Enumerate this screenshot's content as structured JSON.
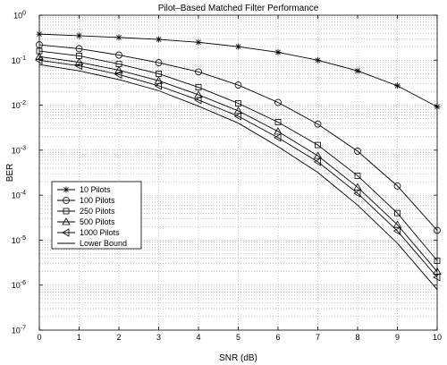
{
  "chart_data": {
    "type": "line",
    "title": "Pilot–Based Matched Filter Performance",
    "xlabel": "SNR (dB)",
    "ylabel": "BER",
    "xlim": [
      0,
      10
    ],
    "ylim": [
      1e-07,
      1
    ],
    "yscale": "log",
    "grid": true,
    "legend_position": "lower-left",
    "x_ticks": [
      "0",
      "1",
      "2",
      "3",
      "4",
      "5",
      "6",
      "7",
      "8",
      "9",
      "10"
    ],
    "y_ticks": [
      {
        "base": "10",
        "exp": "0"
      },
      {
        "base": "10",
        "exp": "-1"
      },
      {
        "base": "10",
        "exp": "-2"
      },
      {
        "base": "10",
        "exp": "-3"
      },
      {
        "base": "10",
        "exp": "-4"
      },
      {
        "base": "10",
        "exp": "-5"
      },
      {
        "base": "10",
        "exp": "-6"
      },
      {
        "base": "10",
        "exp": "-7"
      }
    ],
    "x": [
      0,
      1,
      2,
      3,
      4,
      5,
      6,
      7,
      8,
      9,
      10
    ],
    "series": [
      {
        "name": "10 Pilots",
        "marker": "asterisk",
        "values": [
          0.38,
          0.35,
          0.32,
          0.29,
          0.25,
          0.2,
          0.15,
          0.1,
          0.058,
          0.027,
          0.0092
        ]
      },
      {
        "name": "100 Pilots",
        "marker": "circle",
        "values": [
          0.22,
          0.18,
          0.13,
          0.088,
          0.055,
          0.028,
          0.0115,
          0.0038,
          0.00095,
          0.00016,
          1.65e-05
        ]
      },
      {
        "name": "250 Pilots",
        "marker": "square",
        "values": [
          0.16,
          0.125,
          0.082,
          0.05,
          0.025,
          0.011,
          0.0042,
          0.0013,
          0.00027,
          4e-05,
          3.5e-06
        ]
      },
      {
        "name": "500 Pilots",
        "marker": "triangle-up",
        "values": [
          0.12,
          0.09,
          0.06,
          0.035,
          0.017,
          0.0075,
          0.0026,
          0.00075,
          0.00015,
          2.2e-05,
          2e-06
        ]
      },
      {
        "name": "1000 Pilots",
        "marker": "triangle-left",
        "values": [
          0.1,
          0.075,
          0.048,
          0.027,
          0.013,
          0.0057,
          0.0019,
          0.00055,
          0.00011,
          1.6e-05,
          1.5e-06
        ]
      },
      {
        "name": "Lower Bound",
        "marker": "none",
        "values": [
          0.08,
          0.058,
          0.037,
          0.021,
          0.0095,
          0.004,
          0.0012,
          0.00032,
          6e-05,
          8.5e-06,
          8e-07
        ]
      }
    ]
  }
}
